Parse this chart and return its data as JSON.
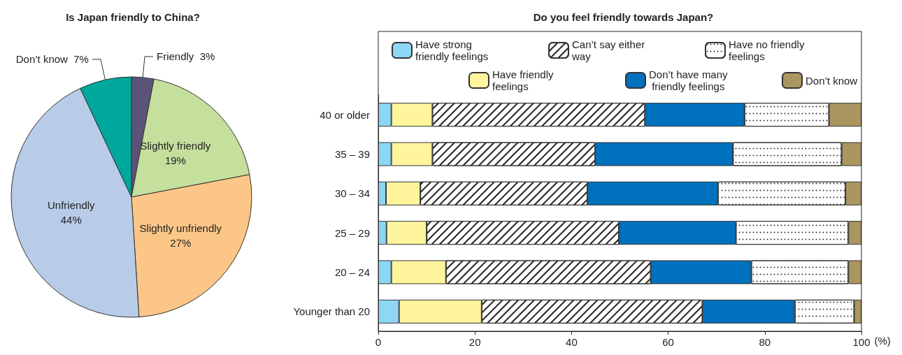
{
  "chart_data": [
    {
      "type": "pie",
      "title": "Is Japan friendly to China?",
      "categories": [
        "Friendly",
        "Slightly friendly",
        "Slightly unfriendly",
        "Unfriendly",
        "Don’t know"
      ],
      "values": [
        3,
        19,
        27,
        44,
        7
      ],
      "value_labels": [
        "3%",
        "19%",
        "27%",
        "44%",
        "7%"
      ],
      "colors": [
        "#5b5478",
        "#c5df9c",
        "#fbc687",
        "#b8cce8",
        "#00a79c"
      ]
    },
    {
      "type": "bar",
      "title": "Do you feel friendly towards Japan?",
      "orientation": "horizontal",
      "stacked": true,
      "legend": "top",
      "xlabel": "(%)",
      "categories": [
        "40 or older",
        "35 – 39",
        "30 – 34",
        "25 – 29",
        "20 – 24",
        "Younger than 20"
      ],
      "xlim": [
        0,
        100
      ],
      "xticks": [
        0,
        20,
        40,
        60,
        80,
        100
      ],
      "series": [
        {
          "name": "Have strong friendly feelings",
          "color": "#8dd6f5",
          "values": [
            2.7,
            2.7,
            1.6,
            1.7,
            2.7,
            4.3
          ]
        },
        {
          "name": "Have friendly feelings",
          "color": "#fff59d",
          "values": [
            8.5,
            8.5,
            7.1,
            8.3,
            11.3,
            17.1
          ]
        },
        {
          "name": "Can’t say either way",
          "color": "#ffffff",
          "values": [
            44.0,
            33.7,
            34.6,
            39.8,
            42.4,
            45.7
          ]
        },
        {
          "name": "Don’t have many friendly feelings",
          "color": "#0071bc",
          "values": [
            20.6,
            28.5,
            27.0,
            24.2,
            20.8,
            19.1
          ]
        },
        {
          "name": "Have no friendly feelings",
          "color": "#fefefe",
          "values": [
            17.5,
            22.5,
            26.4,
            23.3,
            20.1,
            12.3
          ]
        },
        {
          "name": "Don’t know",
          "color": "#ab9660",
          "values": [
            6.7,
            4.1,
            3.3,
            2.7,
            2.7,
            1.5
          ]
        }
      ]
    }
  ]
}
